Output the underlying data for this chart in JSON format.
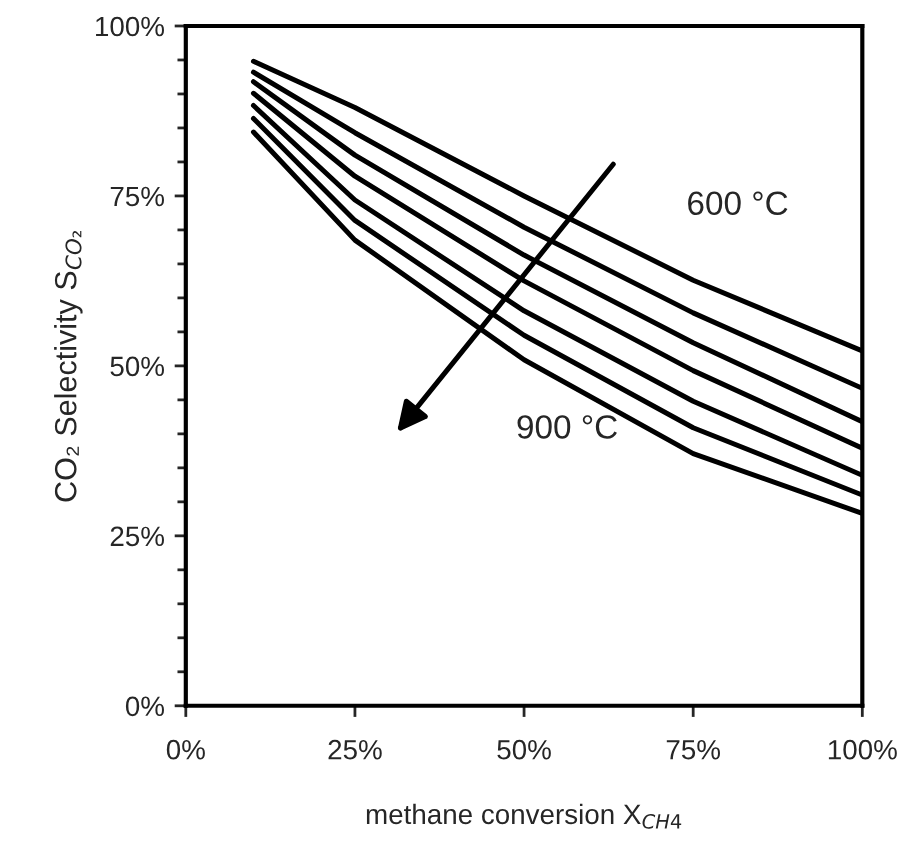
{
  "chart_data": {
    "type": "line",
    "xlabel": "methane conversion X$_{CH4}$",
    "ylabel": "CO₂ Selectivity S$_{CO₂}$",
    "x": [
      10,
      25,
      50,
      75,
      100
    ],
    "series": [
      {
        "color": "#000000",
        "values": [
          94.8,
          88,
          75,
          62.6,
          52.2
        ]
      },
      {
        "color": "#000000",
        "values": [
          93.2,
          84.3,
          70.4,
          57.8,
          46.7
        ]
      },
      {
        "color": "#000000",
        "values": [
          91.8,
          81,
          66.3,
          53.4,
          41.8
        ]
      },
      {
        "color": "#000000",
        "values": [
          90.1,
          77.9,
          62.5,
          49.3,
          37.9
        ]
      },
      {
        "color": "#000000",
        "values": [
          88.3,
          74.4,
          58.1,
          44.8,
          33.9
        ]
      },
      {
        "color": "#000000",
        "values": [
          86.4,
          71.4,
          54.5,
          40.9,
          31
        ]
      },
      {
        "color": "#000000",
        "values": [
          84.4,
          68.5,
          50.9,
          37.1,
          28.3
        ]
      }
    ],
    "xlim": [
      0,
      100
    ],
    "ylim": [
      0,
      100
    ],
    "xticks": [
      {
        "value": 0,
        "label": "0%"
      },
      {
        "value": 25,
        "label": "25%"
      },
      {
        "value": 50,
        "label": "50%"
      },
      {
        "value": 75,
        "label": "75%"
      },
      {
        "value": 100,
        "label": "100%"
      }
    ],
    "yticks": [
      {
        "value": 0,
        "label": "0%"
      },
      {
        "value": 25,
        "label": "25%"
      },
      {
        "value": 50,
        "label": "50%"
      },
      {
        "value": 75,
        "label": "75%"
      },
      {
        "value": 100,
        "label": "100%"
      }
    ],
    "annotations": [
      "600 °C",
      "900 °C"
    ],
    "grid": false,
    "legend": false,
    "marker": "none",
    "line_style": "solid"
  }
}
